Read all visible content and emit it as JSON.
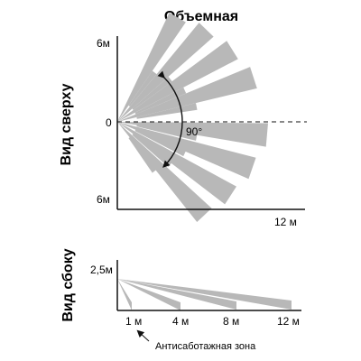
{
  "title": "Объемная",
  "top_view": {
    "label": "Вид сверху",
    "y_top": "6м",
    "y_mid": "0",
    "y_bottom": "6м",
    "x_end": "12 м",
    "angle": "90°"
  },
  "side_view": {
    "label": "Вид сбоку",
    "height": "2,5м",
    "x_ticks": [
      "1 м",
      "4 м",
      "8 м",
      "12 м"
    ],
    "anti_sabotage": "Антисаботажная зона"
  },
  "colors": {
    "beam": "#b8b8b8",
    "axis": "#111111"
  }
}
